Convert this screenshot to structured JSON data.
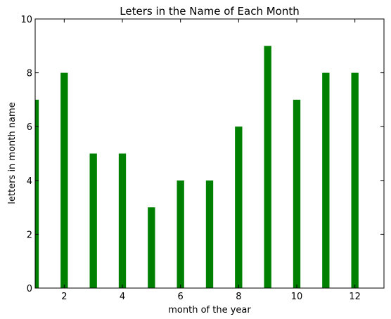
{
  "chart_data": {
    "type": "bar",
    "title": "Leters in the Name of Each Month",
    "xlabel": "month of the year",
    "ylabel": "letters in month name",
    "x": [
      1,
      2,
      3,
      4,
      5,
      6,
      7,
      8,
      9,
      10,
      11,
      12
    ],
    "values": [
      7,
      8,
      5,
      5,
      3,
      4,
      4,
      6,
      9,
      7,
      8,
      8
    ],
    "xlim": [
      1,
      13
    ],
    "ylim": [
      0,
      10
    ],
    "xticks": [
      2,
      4,
      6,
      8,
      10,
      12
    ],
    "yticks": [
      0,
      2,
      4,
      6,
      8,
      10
    ],
    "bar_color": "#008000",
    "grid": false
  }
}
